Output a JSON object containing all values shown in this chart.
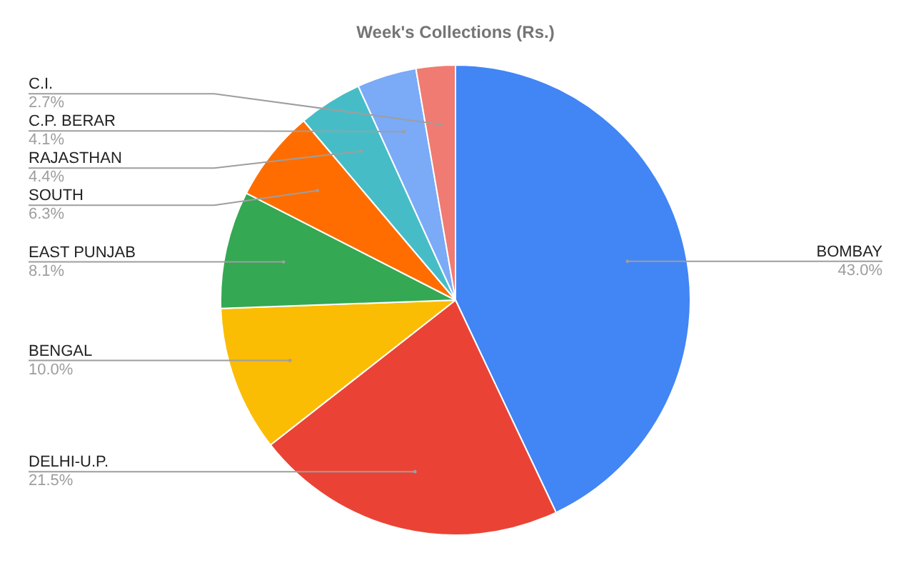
{
  "chart_data": {
    "type": "pie",
    "title": "Week's Collections (Rs.)",
    "categories": [
      "BOMBAY",
      "DELHI-U.P.",
      "BENGAL",
      "EAST PUNJAB",
      "SOUTH",
      "RAJASTHAN",
      "C.P. BERAR",
      "C.I."
    ],
    "values": [
      43.0,
      21.5,
      10.0,
      8.1,
      6.3,
      4.4,
      4.1,
      2.7
    ],
    "colors": [
      "#4285f4",
      "#ea4335",
      "#fbbc04",
      "#34a853",
      "#ff6d01",
      "#46bdc6",
      "#7baaf7",
      "#f07b72"
    ],
    "value_labels": [
      "43.0%",
      "21.5%",
      "10.0%",
      "8.1%",
      "6.3%",
      "4.4%",
      "4.1%",
      "2.7%"
    ],
    "legend": false
  }
}
